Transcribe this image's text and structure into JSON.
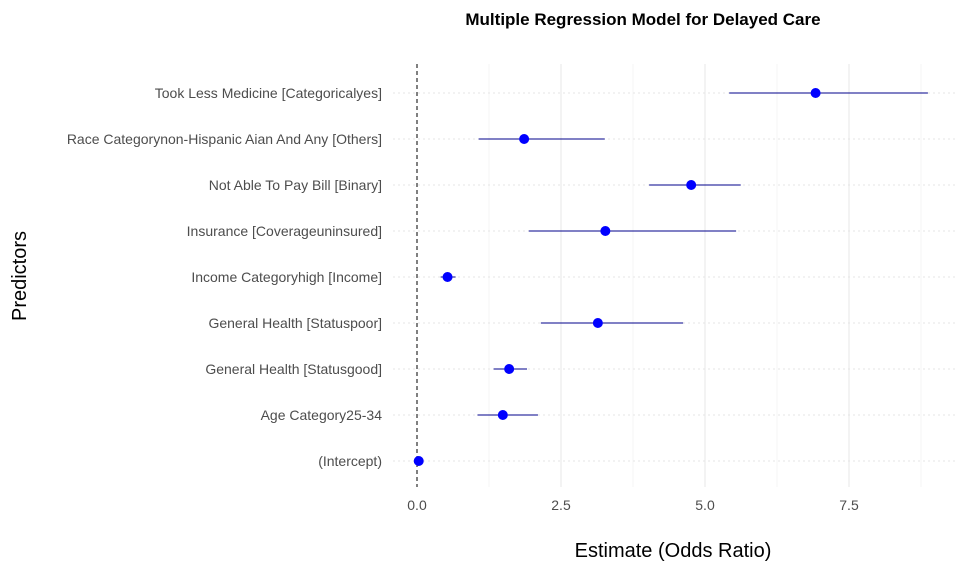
{
  "chart_data": {
    "type": "scatter",
    "subtype": "coefficient-plot-with-confidence-intervals",
    "title": "Multiple Regression Model for Delayed Care",
    "xlabel": "Estimate (Odds Ratio)",
    "ylabel": "Predictors",
    "xlim": [
      -0.4,
      8.9
    ],
    "x_ticks": [
      0.0,
      2.5,
      5.0,
      7.5
    ],
    "x_tick_labels": [
      "0.0",
      "2.5",
      "5.0",
      "7.5"
    ],
    "reference_line_x": 0,
    "grid": true,
    "point_color": "#0000ff",
    "ci_color": "#00008b",
    "categories": [
      "Took Less Medicine [Categoricalyes]",
      "Race Categorynon-Hispanic Aian And Any [Others]",
      "Not Able To Pay Bill [Binary]",
      "Insurance [Coverageuninsured]",
      "Income Categoryhigh [Income]",
      "General Health [Statuspoor]",
      "General Health [Statusgood]",
      "Age Category25-34",
      "(Intercept)"
    ],
    "estimates": [
      6.92,
      1.86,
      4.76,
      3.27,
      0.53,
      3.14,
      1.6,
      1.49,
      0.03
    ],
    "ci_low": [
      5.42,
      1.07,
      4.03,
      1.94,
      0.41,
      2.15,
      1.33,
      1.05,
      0.02
    ],
    "ci_high": [
      8.87,
      3.26,
      5.62,
      5.54,
      0.67,
      4.62,
      1.91,
      2.1,
      0.05
    ]
  }
}
